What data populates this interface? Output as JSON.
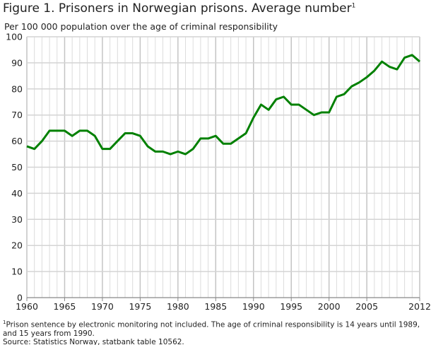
{
  "title": "Figure 1.  Prisoners in Norwegian prisons. Average number",
  "title_sup": "1",
  "subtitle": "Per 100 000 population over the age of criminal responsibility",
  "footnote_marker": "1",
  "footnote": "Prison sentence by electronic monitoring not included. The age of criminal responsibility is 14 years until 1989, and 15 years from 1990.",
  "source": "Source: Statistics Norway, statbank table 10562.",
  "chart_data": {
    "type": "line",
    "title": "Figure 1.  Prisoners in Norwegian prisons. Average number",
    "ylabel": "Per 100 000 population over the age of criminal responsibility",
    "xlim": [
      1960,
      2012
    ],
    "ylim": [
      0,
      100
    ],
    "grid": true,
    "line_color": "#008000",
    "x_ticks": [
      1960,
      1965,
      1970,
      1975,
      1980,
      1985,
      1990,
      1995,
      2000,
      2005,
      2012
    ],
    "y_ticks": [
      0,
      10,
      20,
      30,
      40,
      50,
      60,
      70,
      80,
      90,
      100
    ],
    "x": [
      1960,
      1961,
      1962,
      1963,
      1964,
      1965,
      1966,
      1967,
      1968,
      1969,
      1970,
      1971,
      1972,
      1973,
      1974,
      1975,
      1976,
      1977,
      1978,
      1979,
      1980,
      1981,
      1982,
      1983,
      1984,
      1985,
      1986,
      1987,
      1988,
      1989,
      1990,
      1991,
      1992,
      1993,
      1994,
      1995,
      1996,
      1997,
      1998,
      1999,
      2000,
      2001,
      2002,
      2003,
      2004,
      2005,
      2006,
      2007,
      2008,
      2009,
      2010,
      2011,
      2012
    ],
    "values": [
      58,
      57,
      60,
      64,
      64,
      64,
      62,
      64,
      64,
      62,
      57,
      57,
      60,
      63,
      63,
      62,
      58,
      56,
      56,
      55,
      56,
      55,
      57,
      61,
      61,
      62,
      59,
      59,
      61,
      63,
      69,
      74,
      72,
      76,
      77,
      74,
      74,
      72,
      70,
      71,
      71,
      77,
      78,
      81,
      82.5,
      84.5,
      87,
      90.5,
      88.5,
      87.5,
      92,
      93,
      90.5
    ]
  }
}
